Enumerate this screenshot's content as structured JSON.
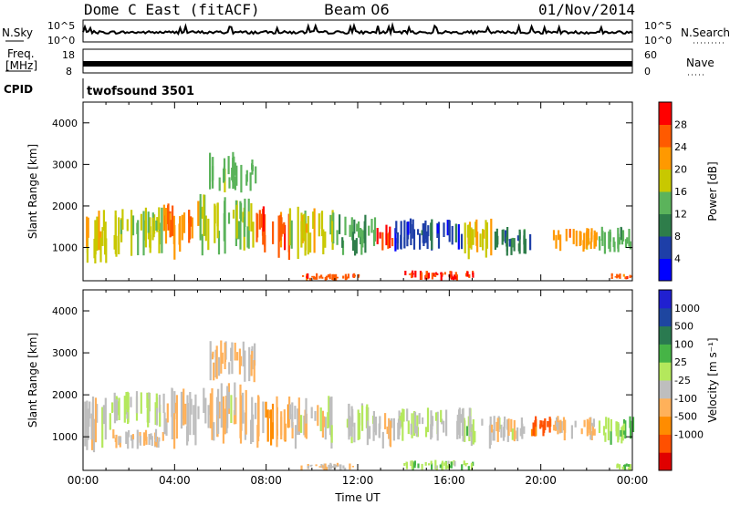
{
  "header": {
    "station": "Dome C East (fitACF)",
    "beam": "Beam 06",
    "date": "01/Nov/2014"
  },
  "status_panels": {
    "nsky": {
      "label": "N.Sky",
      "ticks": [
        "10^5",
        "10^0"
      ]
    },
    "nsearch": {
      "label": "N.Search",
      "ticks": [
        "10^5",
        "10^0"
      ]
    },
    "freq": {
      "label_line1": "Freq.",
      "label_line2": "[MHz]",
      "ticks": [
        "18",
        "8"
      ]
    },
    "nave": {
      "label": "Nave",
      "ticks": [
        "60",
        "0"
      ]
    },
    "cpid": {
      "label": "CPID",
      "value": "twofsound 3501"
    }
  },
  "colors": {
    "power": [
      "#0000ff",
      "#1e3fa8",
      "#2e7d4a",
      "#5bb35b",
      "#c8c800",
      "#ff9900",
      "#ff5a00",
      "#ff0000"
    ],
    "velocity": [
      "#e00000",
      "#ff5000",
      "#ff8c00",
      "#ffb15a",
      "#bebebe",
      "#b4e85c",
      "#46b446",
      "#2a7a50",
      "#1e46a0",
      "#2020d0"
    ]
  },
  "chart_data": [
    {
      "type": "heatmap",
      "name": "power",
      "xlabel": "",
      "ylabel": "Slant Range [km]",
      "yticks": [
        "1000",
        "2000",
        "3000",
        "4000"
      ],
      "xticks": [],
      "ylim": [
        200,
        4500
      ],
      "xlim": [
        0,
        24
      ],
      "colorbar": {
        "label": "Power [dB]",
        "ticks": [
          "4",
          "8",
          "12",
          "16",
          "20",
          "24",
          "28"
        ],
        "range": [
          0,
          32
        ]
      },
      "echo_regions": [
        {
          "t0": 0.0,
          "t1": 1.2,
          "r0": 600,
          "r1": 2000,
          "value": 20
        },
        {
          "t0": 1.2,
          "t1": 3.5,
          "r0": 700,
          "r1": 2000,
          "value": 17
        },
        {
          "t0": 3.5,
          "t1": 5.0,
          "r0": 700,
          "r1": 2200,
          "value": 24
        },
        {
          "t0": 5.0,
          "t1": 7.5,
          "r0": 800,
          "r1": 2300,
          "value": 16
        },
        {
          "t0": 5.5,
          "t1": 7.5,
          "r0": 2300,
          "r1": 3300,
          "value": 14
        },
        {
          "t0": 7.5,
          "t1": 9.0,
          "r0": 700,
          "r1": 2000,
          "value": 26
        },
        {
          "t0": 9.0,
          "t1": 11.0,
          "r0": 700,
          "r1": 2000,
          "value": 18
        },
        {
          "t0": 11.0,
          "t1": 12.8,
          "r0": 800,
          "r1": 1800,
          "value": 12
        },
        {
          "t0": 12.8,
          "t1": 13.6,
          "r0": 700,
          "r1": 1600,
          "value": 28
        },
        {
          "t0": 13.6,
          "t1": 16.5,
          "r0": 900,
          "r1": 1700,
          "value": 6
        },
        {
          "t0": 16.5,
          "t1": 17.8,
          "r0": 700,
          "r1": 1700,
          "value": 20
        },
        {
          "t0": 17.8,
          "t1": 19.5,
          "r0": 800,
          "r1": 1500,
          "value": 10
        },
        {
          "t0": 20.5,
          "t1": 22.5,
          "r0": 900,
          "r1": 1500,
          "value": 22
        },
        {
          "t0": 22.5,
          "t1": 24.0,
          "r0": 800,
          "r1": 1500,
          "value": 14
        },
        {
          "t0": 9.5,
          "t1": 12.0,
          "r0": 200,
          "r1": 380,
          "value": 26
        },
        {
          "t0": 14.0,
          "t1": 17.0,
          "r0": 200,
          "r1": 450,
          "value": 28
        },
        {
          "t0": 23.0,
          "t1": 24.0,
          "r0": 200,
          "r1": 380,
          "value": 26
        }
      ]
    },
    {
      "type": "heatmap",
      "name": "velocity",
      "xlabel": "Time UT",
      "ylabel": "Slant Range [km]",
      "yticks": [
        "1000",
        "2000",
        "3000",
        "4000"
      ],
      "xticks": [
        "00:00",
        "04:00",
        "08:00",
        "12:00",
        "16:00",
        "20:00",
        "00:00"
      ],
      "ylim": [
        200,
        4500
      ],
      "xlim": [
        0,
        24
      ],
      "colorbar": {
        "label": "Velocity [m s⁻¹]",
        "ticks": [
          "1000",
          "500",
          "100",
          "25",
          "-25",
          "-100",
          "-500",
          "-1000"
        ],
        "range": [
          -1200,
          1200
        ]
      },
      "echo_regions": [
        {
          "t0": 0.0,
          "t1": 1.2,
          "r0": 600,
          "r1": 2000,
          "value": -150
        },
        {
          "t0": 1.2,
          "t1": 3.5,
          "r0": 1200,
          "r1": 2100,
          "value": 0
        },
        {
          "t0": 1.2,
          "t1": 3.5,
          "r0": 700,
          "r1": 1200,
          "value": -200
        },
        {
          "t0": 3.5,
          "t1": 5.0,
          "r0": 700,
          "r1": 2200,
          "value": -200
        },
        {
          "t0": 5.0,
          "t1": 7.5,
          "r0": 800,
          "r1": 2300,
          "value": -150
        },
        {
          "t0": 5.5,
          "t1": 7.5,
          "r0": 2300,
          "r1": 3300,
          "value": -300
        },
        {
          "t0": 7.5,
          "t1": 9.0,
          "r0": 700,
          "r1": 2000,
          "value": -400
        },
        {
          "t0": 9.0,
          "t1": 11.0,
          "r0": 700,
          "r1": 2000,
          "value": -150
        },
        {
          "t0": 11.0,
          "t1": 12.8,
          "r0": 800,
          "r1": 1800,
          "value": 0
        },
        {
          "t0": 12.8,
          "t1": 13.6,
          "r0": 700,
          "r1": 1600,
          "value": -200
        },
        {
          "t0": 13.6,
          "t1": 16.5,
          "r0": 900,
          "r1": 1700,
          "value": -40
        },
        {
          "t0": 16.5,
          "t1": 17.8,
          "r0": 700,
          "r1": 1700,
          "value": 80
        },
        {
          "t0": 17.8,
          "t1": 19.5,
          "r0": 800,
          "r1": 1500,
          "value": -150
        },
        {
          "t0": 19.5,
          "t1": 20.5,
          "r0": 1000,
          "r1": 1500,
          "value": -800
        },
        {
          "t0": 20.5,
          "t1": 22.5,
          "r0": 900,
          "r1": 1500,
          "value": -300
        },
        {
          "t0": 22.5,
          "t1": 24.0,
          "r0": 800,
          "r1": 1500,
          "value": 200
        },
        {
          "t0": 9.5,
          "t1": 12.0,
          "r0": 200,
          "r1": 380,
          "value": -200
        },
        {
          "t0": 14.0,
          "t1": 17.0,
          "r0": 200,
          "r1": 450,
          "value": 150
        },
        {
          "t0": 23.0,
          "t1": 24.0,
          "r0": 200,
          "r1": 380,
          "value": 200
        }
      ]
    }
  ]
}
